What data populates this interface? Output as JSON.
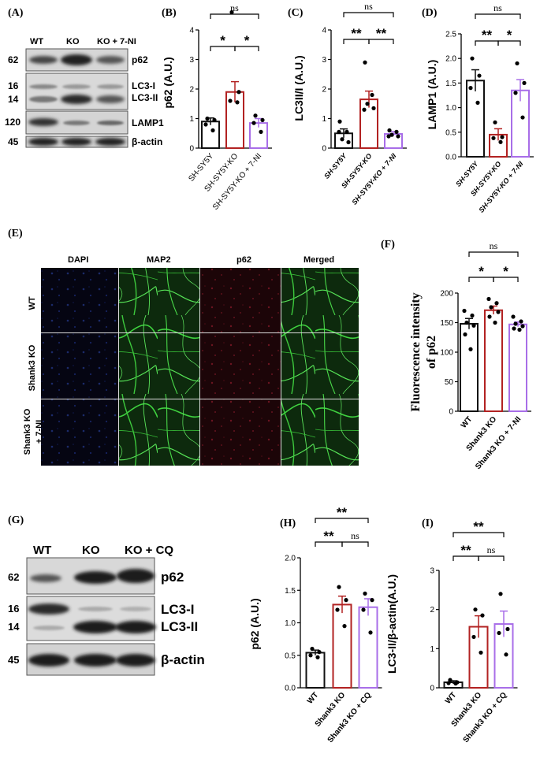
{
  "panels": {
    "A": {
      "label": "(A)",
      "lanes": [
        "WT",
        "KO",
        "KO + 7-NI"
      ],
      "rows": [
        {
          "mw": "62",
          "bands": [
            "p62"
          ]
        },
        {
          "mw": "16",
          "mw2": "14",
          "bands": [
            "LC3-I",
            "LC3-II"
          ]
        },
        {
          "mw": "120",
          "bands": [
            "LAMP1"
          ]
        },
        {
          "mw": "45",
          "bands": [
            "β-actin"
          ]
        }
      ]
    },
    "E": {
      "label": "(E)",
      "columns": [
        "DAPI",
        "MAP2",
        "p62",
        "Merged"
      ],
      "rows": [
        "WT",
        "Shank3 KO",
        "Shank3 KO + 7-NI"
      ]
    },
    "G": {
      "label": "(G)",
      "lanes": [
        "WT",
        "KO",
        "KO + CQ"
      ],
      "rows": [
        {
          "mw": "62",
          "bands": [
            "p62"
          ]
        },
        {
          "mw": "16",
          "mw2": "14",
          "bands": [
            "LC3-I",
            "LC3-II"
          ]
        },
        {
          "mw": "45",
          "bands": [
            "β-actin"
          ]
        }
      ]
    }
  },
  "chart_data": [
    {
      "panel": "B",
      "label": "(B)",
      "type": "bar",
      "ylabel": "p62 (A.U.)",
      "ylim": [
        0,
        4
      ],
      "yticks": [
        "0",
        "1",
        "2",
        "3",
        "4"
      ],
      "categories": [
        "SH-SY5Y",
        "SH-SY5Y-KO",
        "SH-SY5Y-KO + 7-NI"
      ],
      "values": [
        0.9,
        1.9,
        0.85
      ],
      "errors": [
        0.12,
        0.35,
        0.15
      ],
      "points": [
        [
          1.0,
          0.95,
          0.8,
          0.6
        ],
        [
          4.6,
          1.9,
          1.6,
          1.55
        ],
        [
          1.1,
          0.95,
          0.85,
          0.55
        ]
      ],
      "colors": [
        "#111111",
        "#b22222",
        "#a86ee8"
      ],
      "significance": [
        {
          "from": 0,
          "to": 1,
          "text": "*"
        },
        {
          "from": 1,
          "to": 2,
          "text": "*"
        },
        {
          "from": 0,
          "to": 2,
          "text": "ns"
        }
      ]
    },
    {
      "panel": "C",
      "label": "(C)",
      "type": "bar",
      "ylabel": "LC3II/I (A.U.)",
      "ylim": [
        0,
        4
      ],
      "yticks": [
        "0",
        "1",
        "2",
        "3",
        "4"
      ],
      "categories": [
        "SH-SY5Y",
        "SH-SY5Y-KO",
        "SH-SY5Y-KO + 7-NI"
      ],
      "values": [
        0.5,
        1.65,
        0.48
      ],
      "errors": [
        0.15,
        0.28,
        0.08
      ],
      "points": [
        [
          0.9,
          0.55,
          0.3,
          0.2,
          0.55
        ],
        [
          2.9,
          1.8,
          1.5,
          1.35,
          1.3
        ],
        [
          0.6,
          0.55,
          0.45,
          0.4,
          0.4
        ]
      ],
      "colors": [
        "#111111",
        "#b22222",
        "#a86ee8"
      ],
      "significance": [
        {
          "from": 0,
          "to": 1,
          "text": "**"
        },
        {
          "from": 1,
          "to": 2,
          "text": "**"
        },
        {
          "from": 0,
          "to": 2,
          "text": "ns"
        }
      ]
    },
    {
      "panel": "D",
      "label": "(D)",
      "type": "bar",
      "ylabel": "LAMP1 (A.U.)",
      "ylim": [
        0,
        2.5
      ],
      "yticks": [
        "0.0",
        "0.5",
        "1.0",
        "1.5",
        "2.0",
        "2.5"
      ],
      "categories": [
        "SH-SY5Y",
        "SH-SY5Y-KO",
        "SH-SY5Y-KO + 7-NI"
      ],
      "values": [
        1.55,
        0.45,
        1.35
      ],
      "errors": [
        0.22,
        0.12,
        0.22
      ],
      "points": [
        [
          2.0,
          1.65,
          1.4,
          1.1
        ],
        [
          0.7,
          0.4,
          0.38,
          0.3
        ],
        [
          1.9,
          1.5,
          1.3,
          0.8
        ]
      ],
      "colors": [
        "#111111",
        "#b22222",
        "#a86ee8"
      ],
      "significance": [
        {
          "from": 0,
          "to": 1,
          "text": "**"
        },
        {
          "from": 1,
          "to": 2,
          "text": "*"
        },
        {
          "from": 0,
          "to": 2,
          "text": "ns"
        }
      ]
    },
    {
      "panel": "F",
      "label": "(F)",
      "type": "bar",
      "ylabel": "Fluorescence intensity of p62",
      "ylabel_lines": [
        "Fluorescence intensity",
        "of p62"
      ],
      "ylim": [
        0,
        200
      ],
      "yticks": [
        "0",
        "50",
        "100",
        "150",
        "200"
      ],
      "categories": [
        "WT",
        "Shank3 KO",
        "Shank3 KO + 7-NI"
      ],
      "values": [
        148,
        171,
        147
      ],
      "errors": [
        9,
        7,
        4
      ],
      "points": [
        [
          170,
          162,
          150,
          145,
          130,
          105
        ],
        [
          190,
          183,
          176,
          168,
          160,
          150
        ],
        [
          160,
          152,
          148,
          144,
          140,
          138
        ]
      ],
      "colors": [
        "#111111",
        "#b22222",
        "#a86ee8"
      ],
      "significance": [
        {
          "from": 0,
          "to": 1,
          "text": "*"
        },
        {
          "from": 1,
          "to": 2,
          "text": "*"
        },
        {
          "from": 0,
          "to": 2,
          "text": "ns"
        }
      ]
    },
    {
      "panel": "H",
      "label": "(H)",
      "type": "bar",
      "ylabel": "p62 (A.U.)",
      "ylim": [
        0,
        2.0
      ],
      "yticks": [
        "0.0",
        "0.5",
        "1.0",
        "1.5",
        "2.0"
      ],
      "categories": [
        "WT",
        "Shank3 KO",
        "Shank3 KO + CQ"
      ],
      "values": [
        0.54,
        1.28,
        1.24
      ],
      "errors": [
        0.04,
        0.13,
        0.13
      ],
      "points": [
        [
          0.6,
          0.55,
          0.5,
          0.47
        ],
        [
          1.55,
          1.35,
          1.2,
          0.95
        ],
        [
          1.45,
          1.35,
          1.2,
          0.85
        ]
      ],
      "colors": [
        "#111111",
        "#b22222",
        "#a86ee8"
      ],
      "significance": [
        {
          "from": 0,
          "to": 1,
          "text": "**"
        },
        {
          "from": 1,
          "to": 2,
          "text": "ns"
        },
        {
          "from": 0,
          "to": 2,
          "text": "**"
        }
      ]
    },
    {
      "panel": "I",
      "label": "(I)",
      "type": "bar",
      "ylabel": "LC3-II/β-actin(A.U.)",
      "ylim": [
        0,
        3
      ],
      "yticks": [
        "0",
        "1",
        "2",
        "3"
      ],
      "categories": [
        "WT",
        "Shank3 KO",
        "Shank3 KO + CQ"
      ],
      "values": [
        0.14,
        1.56,
        1.63
      ],
      "errors": [
        0.04,
        0.28,
        0.33
      ],
      "points": [
        [
          0.2,
          0.14,
          0.12,
          0.11
        ],
        [
          2.0,
          1.85,
          1.3,
          0.9
        ],
        [
          2.4,
          1.5,
          1.4,
          0.85
        ]
      ],
      "colors": [
        "#111111",
        "#b22222",
        "#a86ee8"
      ],
      "significance": [
        {
          "from": 0,
          "to": 1,
          "text": "**"
        },
        {
          "from": 1,
          "to": 2,
          "text": "ns"
        },
        {
          "from": 0,
          "to": 2,
          "text": "**"
        }
      ]
    }
  ]
}
